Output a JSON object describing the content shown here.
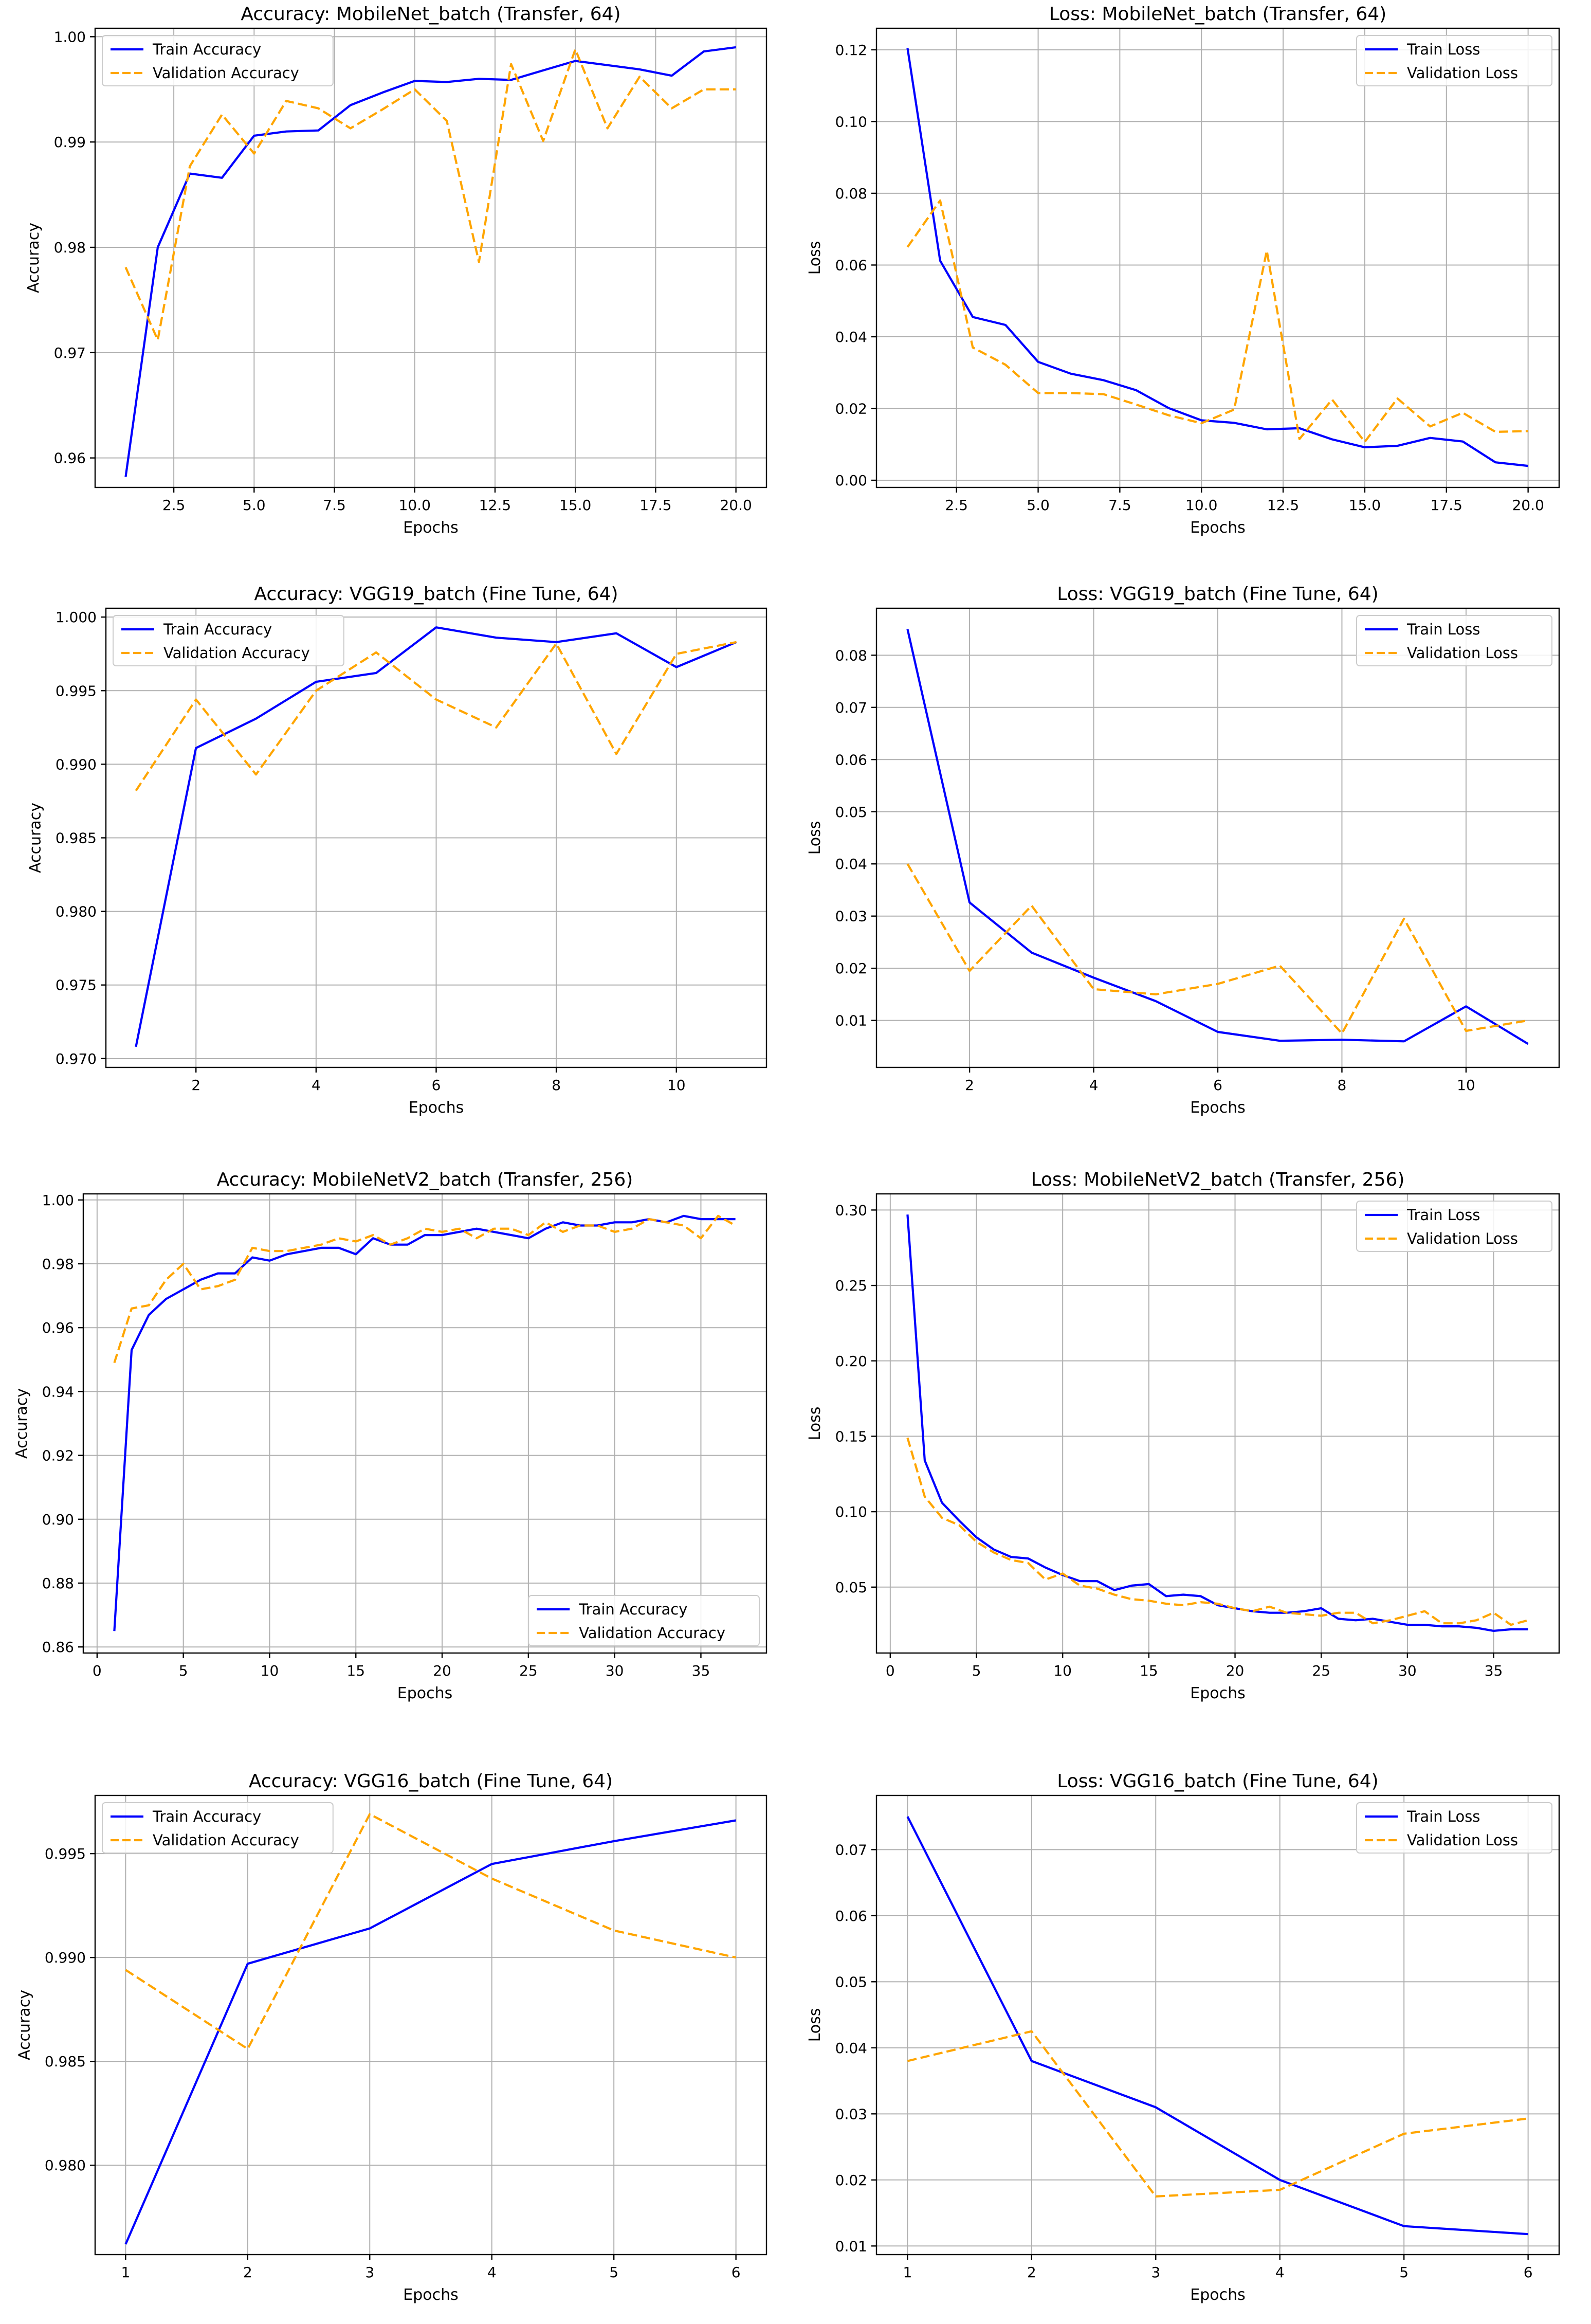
{
  "colors": {
    "train": "#0000ff",
    "validation": "#ffa500",
    "grid": "#b0b0b0",
    "axes": "#000000"
  },
  "chart_data": [
    {
      "type": "line",
      "title": "Accuracy: MobileNet_batch (Transfer, 64)",
      "xlabel": "Epochs",
      "ylabel": "Accuracy",
      "xlim": [
        0.05,
        20.95
      ],
      "ylim": [
        0.9572,
        1.0008
      ],
      "xticks": [
        2.5,
        5.0,
        7.5,
        10.0,
        12.5,
        15.0,
        17.5,
        20.0
      ],
      "xtick_labels": [
        "2.5",
        "5.0",
        "7.5",
        "10.0",
        "12.5",
        "15.0",
        "17.5",
        "20.0"
      ],
      "yticks": [
        0.96,
        0.97,
        0.98,
        0.99,
        1.0
      ],
      "ytick_labels": [
        "0.96",
        "0.97",
        "0.98",
        "0.99",
        "1.00"
      ],
      "legend": "top-left",
      "series": [
        {
          "name": "Train Accuracy",
          "style": "solid",
          "color": "#0000ff",
          "x": [
            1,
            2,
            3,
            4,
            5,
            6,
            7,
            8,
            9,
            10,
            11,
            12,
            13,
            14,
            15,
            16,
            17,
            18,
            19,
            20
          ],
          "values": [
            0.9582,
            0.98,
            0.987,
            0.9866,
            0.9906,
            0.991,
            0.9911,
            0.9935,
            0.9947,
            0.9958,
            0.9957,
            0.996,
            0.9959,
            0.9968,
            0.9977,
            0.9973,
            0.9969,
            0.9963,
            0.9986,
            0.999
          ]
        },
        {
          "name": "Validation Accuracy",
          "style": "dashed",
          "color": "#ffa500",
          "x": [
            1,
            2,
            3,
            4,
            5,
            6,
            7,
            8,
            9,
            10,
            11,
            12,
            13,
            14,
            15,
            16,
            17,
            18,
            19,
            20
          ],
          "values": [
            0.9781,
            0.9712,
            0.9877,
            0.9926,
            0.9889,
            0.9939,
            0.9932,
            0.9913,
            0.9931,
            0.995,
            0.992,
            0.9786,
            0.9974,
            0.9901,
            0.9988,
            0.9913,
            0.9962,
            0.9932,
            0.995,
            0.995
          ]
        }
      ]
    },
    {
      "type": "line",
      "title": "Loss: MobileNet_batch (Transfer, 64)",
      "xlabel": "Epochs",
      "ylabel": "Loss",
      "xlim": [
        0.05,
        20.95
      ],
      "ylim": [
        -0.002,
        0.126
      ],
      "xticks": [
        2.5,
        5.0,
        7.5,
        10.0,
        12.5,
        15.0,
        17.5,
        20.0
      ],
      "xtick_labels": [
        "2.5",
        "5.0",
        "7.5",
        "10.0",
        "12.5",
        "15.0",
        "17.5",
        "20.0"
      ],
      "yticks": [
        0.0,
        0.02,
        0.04,
        0.06,
        0.08,
        0.1,
        0.12
      ],
      "ytick_labels": [
        "0.00",
        "0.02",
        "0.04",
        "0.06",
        "0.08",
        "0.10",
        "0.12"
      ],
      "legend": "top-right",
      "series": [
        {
          "name": "Train Loss",
          "style": "solid",
          "color": "#0000ff",
          "x": [
            1,
            2,
            3,
            4,
            5,
            6,
            7,
            8,
            9,
            10,
            11,
            12,
            13,
            14,
            15,
            16,
            17,
            18,
            19,
            20
          ],
          "values": [
            0.1205,
            0.0612,
            0.0455,
            0.0433,
            0.033,
            0.0297,
            0.0279,
            0.0251,
            0.0201,
            0.0167,
            0.016,
            0.0142,
            0.0145,
            0.0114,
            0.0092,
            0.0096,
            0.0118,
            0.0108,
            0.005,
            0.004
          ]
        },
        {
          "name": "Validation Loss",
          "style": "dashed",
          "color": "#ffa500",
          "x": [
            1,
            2,
            3,
            4,
            5,
            6,
            7,
            8,
            9,
            10,
            11,
            12,
            13,
            14,
            15,
            16,
            17,
            18,
            19,
            20
          ],
          "values": [
            0.065,
            0.078,
            0.037,
            0.0322,
            0.0243,
            0.0243,
            0.024,
            0.0211,
            0.0181,
            0.0159,
            0.0197,
            0.064,
            0.0115,
            0.0225,
            0.0107,
            0.0228,
            0.015,
            0.0188,
            0.0135,
            0.0137
          ]
        }
      ]
    },
    {
      "type": "line",
      "title": "Accuracy: VGG19_batch (Fine Tune, 64)",
      "xlabel": "Epochs",
      "ylabel": "Accuracy",
      "xlim": [
        0.5,
        11.5
      ],
      "ylim": [
        0.9694,
        1.0006
      ],
      "xticks": [
        2,
        4,
        6,
        8,
        10
      ],
      "xtick_labels": [
        "2",
        "4",
        "6",
        "8",
        "10"
      ],
      "yticks": [
        0.97,
        0.975,
        0.98,
        0.985,
        0.99,
        0.995,
        1.0
      ],
      "ytick_labels": [
        "0.970",
        "0.975",
        "0.980",
        "0.985",
        "0.990",
        "0.995",
        "1.000"
      ],
      "legend": "top-left",
      "series": [
        {
          "name": "Train Accuracy",
          "style": "solid",
          "color": "#0000ff",
          "x": [
            1,
            2,
            3,
            4,
            5,
            6,
            7,
            8,
            9,
            10,
            11
          ],
          "values": [
            0.9708,
            0.9911,
            0.9931,
            0.9956,
            0.9962,
            0.9993,
            0.9986,
            0.9983,
            0.9989,
            0.9966,
            0.9983
          ]
        },
        {
          "name": "Validation Accuracy",
          "style": "dashed",
          "color": "#ffa500",
          "x": [
            1,
            2,
            3,
            4,
            5,
            6,
            7,
            8,
            9,
            10,
            11
          ],
          "values": [
            0.9882,
            0.9944,
            0.9893,
            0.995,
            0.9976,
            0.9944,
            0.9925,
            0.9982,
            0.9907,
            0.9975,
            0.9983
          ]
        }
      ]
    },
    {
      "type": "line",
      "title": "Loss: VGG19_batch (Fine Tune, 64)",
      "xlabel": "Epochs",
      "ylabel": "Loss",
      "xlim": [
        0.5,
        11.5
      ],
      "ylim": [
        0.001,
        0.089
      ],
      "xticks": [
        2,
        4,
        6,
        8,
        10
      ],
      "xtick_labels": [
        "2",
        "4",
        "6",
        "8",
        "10"
      ],
      "yticks": [
        0.01,
        0.02,
        0.03,
        0.04,
        0.05,
        0.06,
        0.07,
        0.08
      ],
      "ytick_labels": [
        "0.01",
        "0.02",
        "0.03",
        "0.04",
        "0.05",
        "0.06",
        "0.07",
        "0.08"
      ],
      "legend": "top-right",
      "series": [
        {
          "name": "Train Loss",
          "style": "solid",
          "color": "#0000ff",
          "x": [
            1,
            2,
            3,
            4,
            5,
            6,
            7,
            8,
            9,
            10,
            11
          ],
          "values": [
            0.085,
            0.0326,
            0.023,
            0.0182,
            0.0137,
            0.0078,
            0.0061,
            0.0063,
            0.006,
            0.0127,
            0.0055
          ]
        },
        {
          "name": "Validation Loss",
          "style": "dashed",
          "color": "#ffa500",
          "x": [
            1,
            2,
            3,
            4,
            5,
            6,
            7,
            8,
            9,
            10,
            11
          ],
          "values": [
            0.04,
            0.0195,
            0.032,
            0.016,
            0.015,
            0.017,
            0.0205,
            0.0075,
            0.0295,
            0.008,
            0.01
          ]
        }
      ]
    },
    {
      "type": "line",
      "title": "Accuracy: MobileNetV2_batch (Transfer, 256)",
      "xlabel": "Epochs",
      "ylabel": "Accuracy",
      "xlim": [
        -0.8,
        38.8
      ],
      "ylim": [
        0.8581,
        1.0019
      ],
      "xticks": [
        0,
        5,
        10,
        15,
        20,
        25,
        30,
        35
      ],
      "xtick_labels": [
        "0",
        "5",
        "10",
        "15",
        "20",
        "25",
        "30",
        "35"
      ],
      "yticks": [
        0.86,
        0.88,
        0.9,
        0.92,
        0.94,
        0.96,
        0.98,
        1.0
      ],
      "ytick_labels": [
        "0.86",
        "0.88",
        "0.90",
        "0.92",
        "0.94",
        "0.96",
        "0.98",
        "1.00"
      ],
      "legend": "bottom-right",
      "series": [
        {
          "name": "Train Accuracy",
          "style": "solid",
          "color": "#0000ff",
          "x": [
            1,
            2,
            3,
            4,
            5,
            6,
            7,
            8,
            9,
            10,
            11,
            12,
            13,
            14,
            15,
            16,
            17,
            18,
            19,
            20,
            21,
            22,
            23,
            24,
            25,
            26,
            27,
            28,
            29,
            30,
            31,
            32,
            33,
            34,
            35,
            36,
            37
          ],
          "values": [
            0.865,
            0.953,
            0.964,
            0.969,
            0.972,
            0.975,
            0.977,
            0.977,
            0.982,
            0.981,
            0.983,
            0.984,
            0.985,
            0.985,
            0.983,
            0.988,
            0.986,
            0.986,
            0.989,
            0.989,
            0.99,
            0.991,
            0.99,
            0.989,
            0.988,
            0.991,
            0.993,
            0.992,
            0.992,
            0.993,
            0.993,
            0.994,
            0.993,
            0.995,
            0.994,
            0.994,
            0.994
          ]
        },
        {
          "name": "Validation Accuracy",
          "style": "dashed",
          "color": "#ffa500",
          "x": [
            1,
            2,
            3,
            4,
            5,
            6,
            7,
            8,
            9,
            10,
            11,
            12,
            13,
            14,
            15,
            16,
            17,
            18,
            19,
            20,
            21,
            22,
            23,
            24,
            25,
            26,
            27,
            28,
            29,
            30,
            31,
            32,
            33,
            34,
            35,
            36,
            37
          ],
          "values": [
            0.949,
            0.966,
            0.967,
            0.975,
            0.98,
            0.972,
            0.973,
            0.975,
            0.985,
            0.984,
            0.984,
            0.985,
            0.986,
            0.988,
            0.987,
            0.989,
            0.986,
            0.988,
            0.991,
            0.99,
            0.991,
            0.988,
            0.991,
            0.991,
            0.989,
            0.993,
            0.99,
            0.992,
            0.992,
            0.99,
            0.991,
            0.994,
            0.993,
            0.992,
            0.988,
            0.995,
            0.992
          ]
        }
      ]
    },
    {
      "type": "line",
      "title": "Loss: MobileNetV2_batch (Transfer, 256)",
      "xlabel": "Epochs",
      "ylabel": "Loss",
      "xlim": [
        -0.8,
        38.8
      ],
      "ylim": [
        0.0063,
        0.3107
      ],
      "xticks": [
        0,
        5,
        10,
        15,
        20,
        25,
        30,
        35
      ],
      "xtick_labels": [
        "0",
        "5",
        "10",
        "15",
        "20",
        "25",
        "30",
        "35"
      ],
      "yticks": [
        0.05,
        0.1,
        0.15,
        0.2,
        0.25,
        0.3
      ],
      "ytick_labels": [
        "0.05",
        "0.10",
        "0.15",
        "0.20",
        "0.25",
        "0.30"
      ],
      "legend": "top-right",
      "series": [
        {
          "name": "Train Loss",
          "style": "solid",
          "color": "#0000ff",
          "x": [
            1,
            2,
            3,
            4,
            5,
            6,
            7,
            8,
            9,
            10,
            11,
            12,
            13,
            14,
            15,
            16,
            17,
            18,
            19,
            20,
            21,
            22,
            23,
            24,
            25,
            26,
            27,
            28,
            29,
            30,
            31,
            32,
            33,
            34,
            35,
            36,
            37
          ],
          "values": [
            0.297,
            0.134,
            0.106,
            0.094,
            0.083,
            0.075,
            0.07,
            0.069,
            0.063,
            0.058,
            0.054,
            0.054,
            0.048,
            0.051,
            0.052,
            0.044,
            0.045,
            0.044,
            0.038,
            0.036,
            0.034,
            0.033,
            0.033,
            0.034,
            0.036,
            0.029,
            0.028,
            0.029,
            0.027,
            0.025,
            0.025,
            0.024,
            0.024,
            0.023,
            0.021,
            0.022,
            0.022
          ]
        },
        {
          "name": "Validation Loss",
          "style": "dashed",
          "color": "#ffa500",
          "x": [
            1,
            2,
            3,
            4,
            5,
            6,
            7,
            8,
            9,
            10,
            11,
            12,
            13,
            14,
            15,
            16,
            17,
            18,
            19,
            20,
            21,
            22,
            23,
            24,
            25,
            26,
            27,
            28,
            29,
            30,
            31,
            32,
            33,
            34,
            35,
            36,
            37
          ],
          "values": [
            0.149,
            0.11,
            0.096,
            0.091,
            0.08,
            0.073,
            0.068,
            0.066,
            0.055,
            0.059,
            0.051,
            0.049,
            0.045,
            0.042,
            0.041,
            0.039,
            0.038,
            0.04,
            0.039,
            0.036,
            0.034,
            0.037,
            0.033,
            0.032,
            0.031,
            0.033,
            0.033,
            0.026,
            0.028,
            0.031,
            0.034,
            0.026,
            0.026,
            0.028,
            0.033,
            0.025,
            0.028
          ]
        }
      ]
    },
    {
      "type": "line",
      "title": "Accuracy: VGG16_batch (Fine Tune, 64)",
      "xlabel": "Epochs",
      "ylabel": "Accuracy",
      "xlim": [
        0.75,
        6.25
      ],
      "ylim": [
        0.9757,
        0.9978
      ],
      "xticks": [
        1,
        2,
        3,
        4,
        5,
        6
      ],
      "xtick_labels": [
        "1",
        "2",
        "3",
        "4",
        "5",
        "6"
      ],
      "yticks": [
        0.98,
        0.985,
        0.99,
        0.995
      ],
      "ytick_labels": [
        "0.980",
        "0.985",
        "0.990",
        "0.995"
      ],
      "legend": "top-left",
      "series": [
        {
          "name": "Train Accuracy",
          "style": "solid",
          "color": "#0000ff",
          "x": [
            1,
            2,
            3,
            4,
            5,
            6
          ],
          "values": [
            0.9762,
            0.9897,
            0.9914,
            0.9945,
            0.9956,
            0.9966
          ]
        },
        {
          "name": "Validation Accuracy",
          "style": "dashed",
          "color": "#ffa500",
          "x": [
            1,
            2,
            3,
            4,
            5,
            6
          ],
          "values": [
            0.9894,
            0.9856,
            0.9969,
            0.9938,
            0.9913,
            0.99
          ]
        }
      ]
    },
    {
      "type": "line",
      "title": "Loss: VGG16_batch (Fine Tune, 64)",
      "xlabel": "Epochs",
      "ylabel": "Loss",
      "xlim": [
        0.75,
        6.25
      ],
      "ylim": [
        0.0087,
        0.0782
      ],
      "xticks": [
        1,
        2,
        3,
        4,
        5,
        6
      ],
      "xtick_labels": [
        "1",
        "2",
        "3",
        "4",
        "5",
        "6"
      ],
      "yticks": [
        0.01,
        0.02,
        0.03,
        0.04,
        0.05,
        0.06,
        0.07
      ],
      "ytick_labels": [
        "0.01",
        "0.02",
        "0.03",
        "0.04",
        "0.05",
        "0.06",
        "0.07"
      ],
      "legend": "top-right",
      "series": [
        {
          "name": "Train Loss",
          "style": "solid",
          "color": "#0000ff",
          "x": [
            1,
            2,
            3,
            4,
            5,
            6
          ],
          "values": [
            0.075,
            0.038,
            0.031,
            0.02,
            0.013,
            0.0118
          ]
        },
        {
          "name": "Validation Loss",
          "style": "dashed",
          "color": "#ffa500",
          "x": [
            1,
            2,
            3,
            4,
            5,
            6
          ],
          "values": [
            0.038,
            0.0425,
            0.0175,
            0.0185,
            0.027,
            0.0293
          ]
        }
      ]
    }
  ]
}
